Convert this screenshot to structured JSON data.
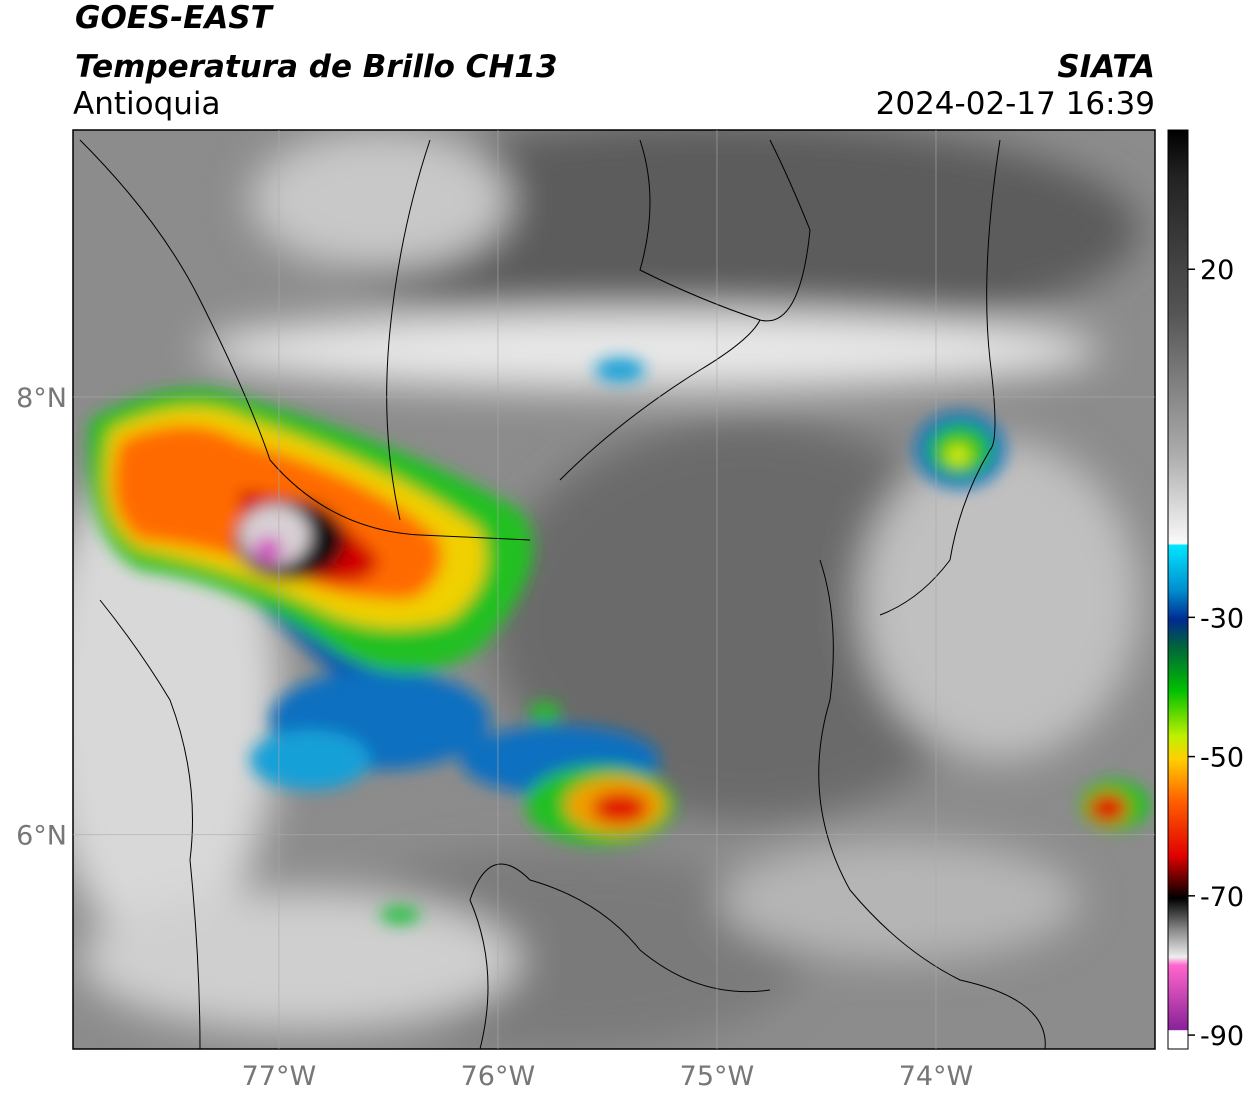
{
  "header": {
    "satellite": "GOES-EAST",
    "product": "Temperatura de Brillo CH13",
    "region": "Antioquia",
    "organization": "SIATA",
    "datetime": "2024-02-17 16:39"
  },
  "chart_data": {
    "type": "map",
    "xlim": [
      -77.94,
      -73.0
    ],
    "ylim": [
      5.02,
      9.22
    ],
    "xticks": [
      {
        "value": -77,
        "label": "77°W"
      },
      {
        "value": -76,
        "label": "76°W"
      },
      {
        "value": -75,
        "label": "75°W"
      },
      {
        "value": -74,
        "label": "74°W"
      }
    ],
    "yticks": [
      {
        "value": 8,
        "label": "8°N"
      },
      {
        "value": 6,
        "label": "6°N"
      }
    ],
    "grid": true,
    "colorbar": {
      "lim": [
        -92,
        40
      ],
      "ticks": [
        20,
        -30,
        -50,
        -70,
        -90
      ]
    }
  }
}
